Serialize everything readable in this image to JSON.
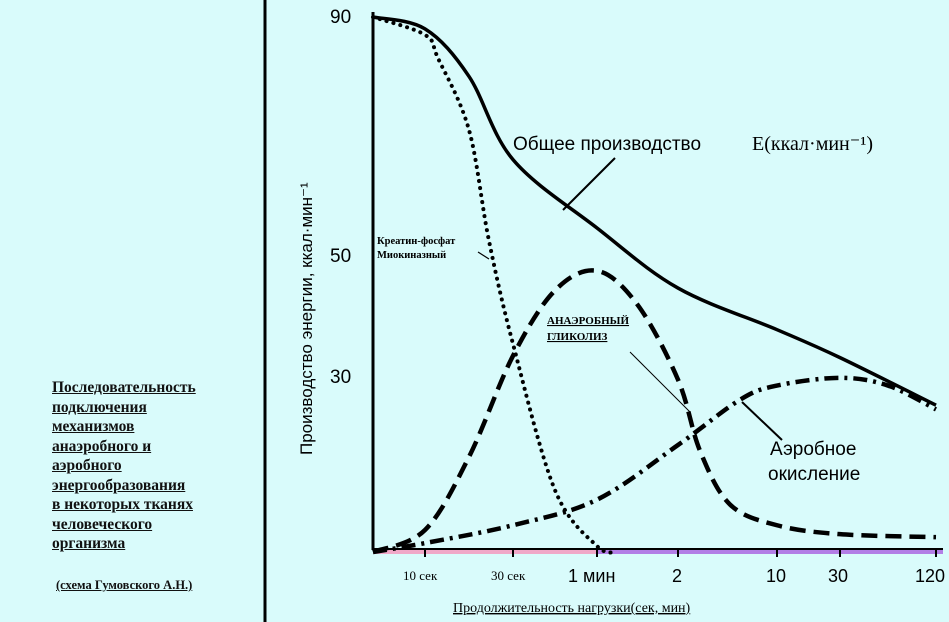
{
  "caption": {
    "lines": [
      "Последовательность",
      "подключения",
      "механизмов",
      "анаэробного и",
      "аэробного",
      "энергообразования",
      "в некоторых тканях",
      "человеческого",
      "организма"
    ],
    "credit": "(схема Гумовского А.Н.)"
  },
  "chart_data": {
    "type": "line",
    "title": "",
    "xlabel": "Продолжительность нагрузки(сек, мин)",
    "ylabel": "Производство энергии, ккал·мин⁻¹",
    "x_unit": "seconds",
    "ylim": [
      0,
      90
    ],
    "y_ticks": [
      {
        "value": 30,
        "label": "30"
      },
      {
        "value": 50,
        "label": "50"
      },
      {
        "value": 90,
        "label": "90"
      }
    ],
    "x_ticks": [
      {
        "value": 10,
        "label": "10 сек"
      },
      {
        "value": 30,
        "label": "30 сек"
      },
      {
        "value": 60,
        "label": "1 мин"
      },
      {
        "value": 120,
        "label": "2"
      },
      {
        "value": 600,
        "label": "10"
      },
      {
        "value": 1800,
        "label": "30"
      },
      {
        "value": 7200,
        "label": "120"
      }
    ],
    "series": [
      {
        "name": "Общее производство",
        "style": "solid",
        "x": [
          2,
          10,
          20,
          30,
          60,
          120,
          600,
          1800,
          7200
        ],
        "y": [
          90,
          88,
          80,
          66,
          54.5,
          44.4,
          37.4,
          32.7,
          24.7
        ]
      },
      {
        "name": "Креатин-фосфат Миокиназный",
        "style": "dotted",
        "x": [
          2,
          10,
          13,
          20,
          24.5,
          30,
          45,
          60,
          75
        ],
        "y": [
          90,
          87,
          83,
          71,
          52.5,
          35,
          10.4,
          1,
          0
        ]
      },
      {
        "name": "АНАЭРОБНЫЙ ГЛИКОЛИЗ",
        "style": "dashed",
        "x": [
          2,
          10,
          20,
          30,
          45,
          60,
          90,
          120,
          227,
          372,
          600,
          1800,
          7200
        ],
        "y": [
          0,
          3.7,
          16,
          33,
          44,
          47.3,
          41.6,
          29,
          17,
          8,
          4.5,
          3,
          2.5
        ]
      },
      {
        "name": "Аэробное окисление",
        "style": "dash-dot",
        "x": [
          2,
          10,
          30,
          60,
          120,
          420,
          600,
          1800,
          4500,
          7200
        ],
        "y": [
          0,
          1.5,
          4.5,
          8.8,
          18,
          25.6,
          28,
          29.3,
          28,
          24
        ]
      }
    ],
    "annotations": {
      "total": "Общее производство",
      "total_unit": "E(ккал·мин⁻¹)",
      "creatine_1": "Креатин-фосфат",
      "creatine_2": "Миокиназный",
      "glyco_1": "АНАЭРОБНЫЙ",
      "glyco_2": "ГЛИКОЛИЗ",
      "aerobic_1": "Аэробное",
      "aerobic_2": "окисление"
    },
    "colors": {
      "background": "#d9fbfb",
      "anaerobic_band": "#f0a8c8",
      "aerobic_band": "#b27ee6",
      "ink": "#000000"
    },
    "grid": false
  }
}
